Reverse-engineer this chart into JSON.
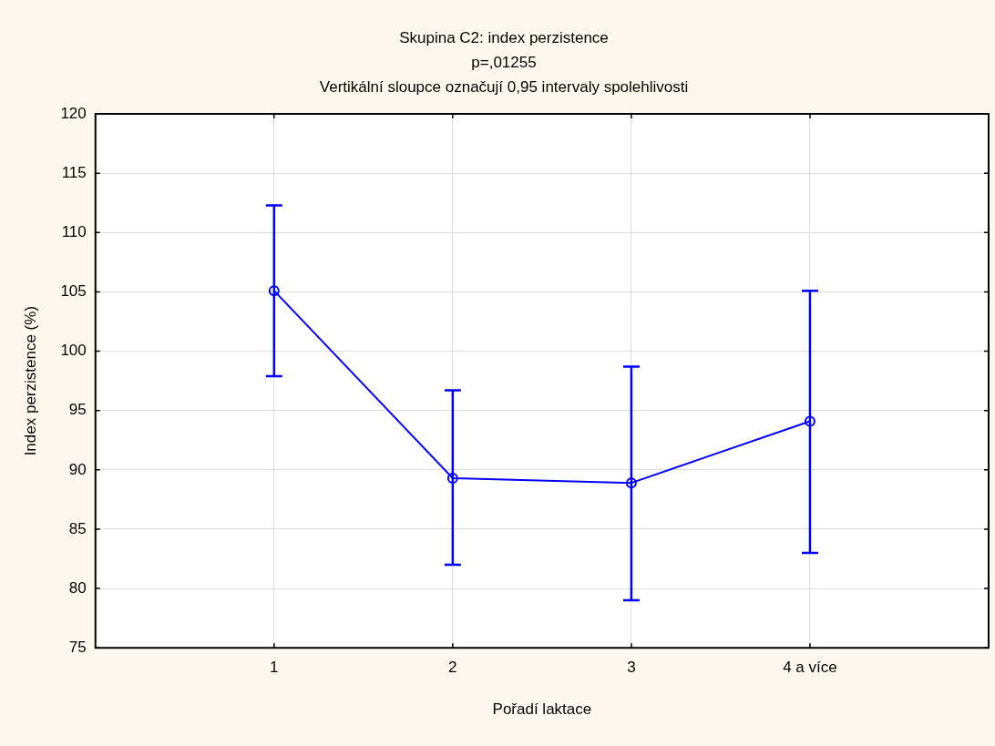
{
  "chart_data": {
    "type": "line",
    "title": "Skupina C2: index perzistence",
    "subtitle": "p=,01255",
    "annotations": [
      "Vertikální sloupce označují 0,95 intervaly spolehlivosti"
    ],
    "xlabel": "Pořadí laktace",
    "ylabel": "Index perzistence (%)",
    "categories": [
      "1",
      "2",
      "3",
      "4 a více"
    ],
    "series": [
      {
        "color": "#0000ff",
        "values": [
          105.1,
          89.3,
          88.9,
          94.1
        ],
        "errors": [
          [
            97.9,
            112.3
          ],
          [
            82.0,
            96.7
          ],
          [
            79.0,
            98.7
          ],
          [
            83.0,
            105.1
          ]
        ]
      }
    ],
    "ylim": [
      75,
      120
    ],
    "yticks": [
      75,
      80,
      85,
      90,
      95,
      100,
      105,
      110,
      115,
      120
    ],
    "grid": true,
    "legend": false,
    "marker": "circle",
    "line_style": "solid"
  }
}
